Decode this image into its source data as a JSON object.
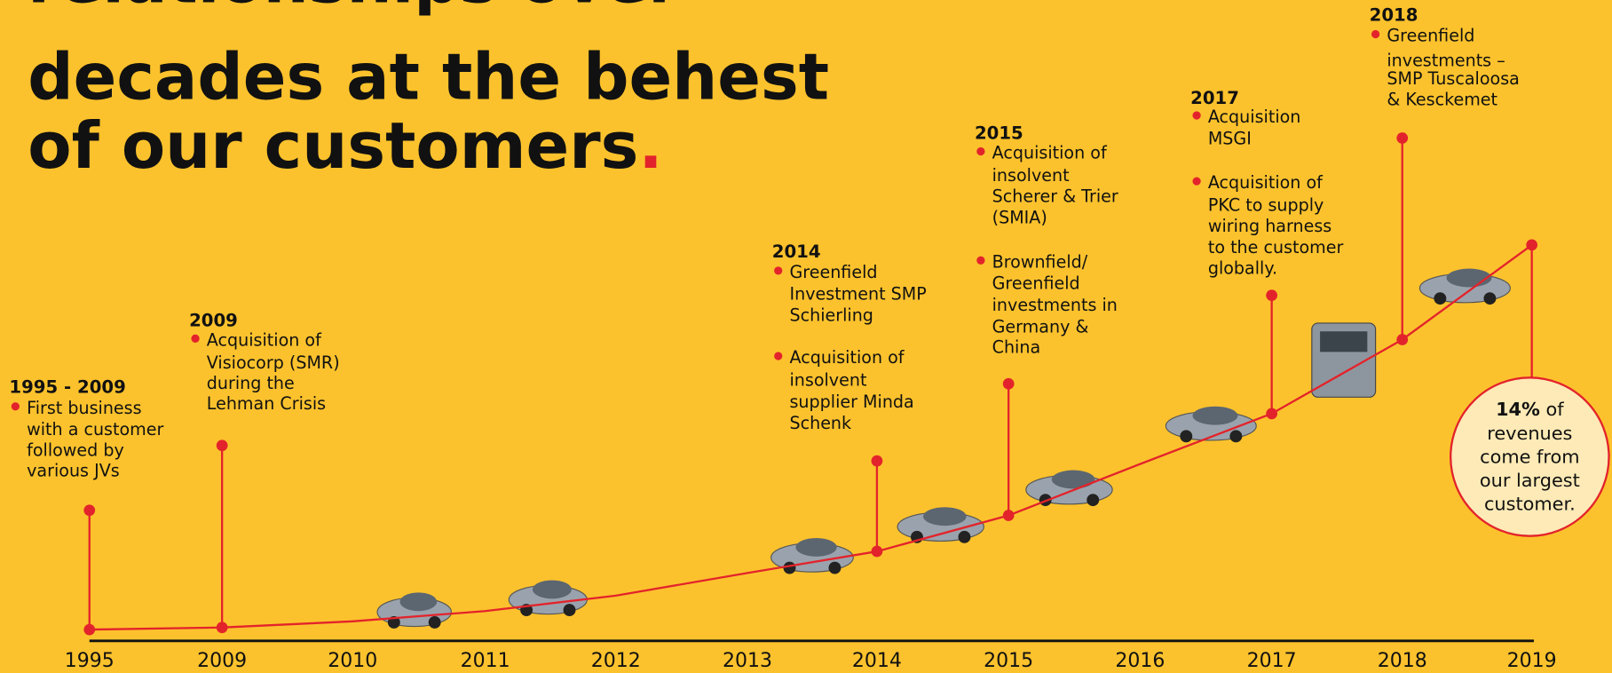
{
  "title": {
    "lines": [
      "relationships over",
      "decades at the behest",
      "of our customers"
    ],
    "end": "."
  },
  "axis": [
    "1995",
    "2009",
    "2010",
    "2011",
    "2012",
    "2013",
    "2014",
    "2015",
    "2016",
    "2017",
    "2018",
    "2019"
  ],
  "events": [
    {
      "year": "1995 - 2009",
      "bullets": [
        [
          "First business",
          "with a customer",
          "followed by",
          "various JVs"
        ]
      ]
    },
    {
      "year": "2009",
      "bullets": [
        [
          "Acquisition of",
          "Visiocorp (SMR)",
          "during the",
          "Lehman Crisis"
        ]
      ]
    },
    {
      "year": "2014",
      "bullets": [
        [
          "Greenfield",
          "Investment SMP",
          "Schierling"
        ],
        [
          "Acquisition of",
          "insolvent",
          "supplier Minda",
          "Schenk"
        ]
      ]
    },
    {
      "year": "2015",
      "bullets": [
        [
          "Acquisition of",
          "insolvent",
          "Scherer & Trier",
          "(SMIA)"
        ],
        [
          "Brownfield/",
          "Greenfield",
          "investments in",
          "Germany &",
          "China"
        ]
      ]
    },
    {
      "year": "2017",
      "bullets": [
        [
          "Acquisition",
          "MSGI"
        ],
        [
          "Acquisition of",
          "PKC to supply",
          "wiring harness",
          "to the customer",
          "globally."
        ]
      ]
    },
    {
      "year": "2018",
      "bullets": [
        [
          "Greenfield",
          "investments –",
          "SMP Tuscaloosa",
          "& Kesckemet"
        ]
      ]
    }
  ],
  "callout": {
    "highlight": "14%",
    "lines": [
      "of",
      "revenues",
      "come from",
      "our largest",
      "customer."
    ]
  }
}
